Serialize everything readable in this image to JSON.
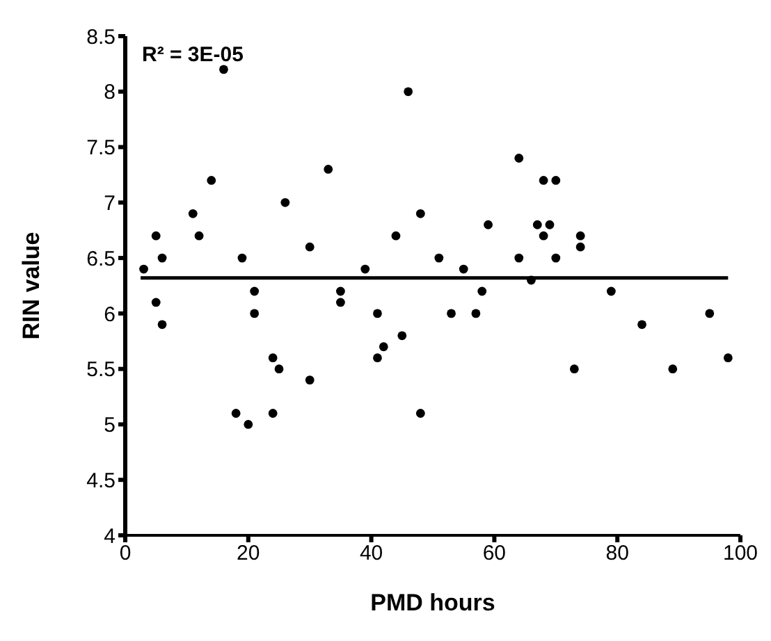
{
  "chart_data": {
    "type": "scatter",
    "xlabel": "PMD hours",
    "ylabel": "RIN value",
    "annotations": [
      "R² = 3E-05"
    ],
    "xlim": [
      0,
      100
    ],
    "xticks": [
      0,
      20,
      40,
      60,
      80,
      100
    ],
    "ylim": [
      4,
      8.5
    ],
    "yticks": [
      4,
      4.5,
      5,
      5.5,
      6,
      6.5,
      7,
      7.5,
      8,
      8.5
    ],
    "grid": false,
    "marker": "circle",
    "series": [
      {
        "color": "#000000",
        "x": [
          3,
          5,
          5,
          6,
          6,
          11,
          12,
          14,
          16,
          18,
          19,
          20,
          21,
          21,
          24,
          24,
          25,
          26,
          30,
          30,
          33,
          35,
          35,
          39,
          41,
          41,
          42,
          44,
          45,
          46,
          48,
          48,
          51,
          53,
          55,
          57,
          58,
          59,
          64,
          64,
          66,
          67,
          68,
          68,
          69,
          70,
          70,
          73,
          74,
          74,
          79,
          84,
          89,
          95,
          98
        ],
        "values": [
          6.4,
          6.7,
          6.1,
          6.5,
          5.9,
          6.9,
          6.7,
          7.2,
          8.2,
          5.1,
          6.5,
          5.0,
          6.2,
          6.0,
          5.6,
          5.1,
          5.5,
          7.0,
          6.6,
          5.4,
          7.3,
          6.2,
          6.1,
          6.4,
          6.0,
          5.6,
          5.7,
          6.7,
          5.8,
          8.0,
          6.9,
          5.1,
          6.5,
          6.0,
          6.4,
          6.0,
          6.2,
          6.8,
          7.4,
          6.5,
          6.3,
          6.8,
          6.7,
          7.2,
          6.8,
          7.2,
          6.5,
          5.5,
          6.7,
          6.6,
          6.2,
          5.9,
          5.5,
          6.0,
          5.6
        ]
      },
      {
        "type": "line",
        "color": "#000000",
        "marker": "none",
        "x": [
          2.5,
          98
        ],
        "values": [
          6.32,
          6.32
        ]
      }
    ]
  }
}
